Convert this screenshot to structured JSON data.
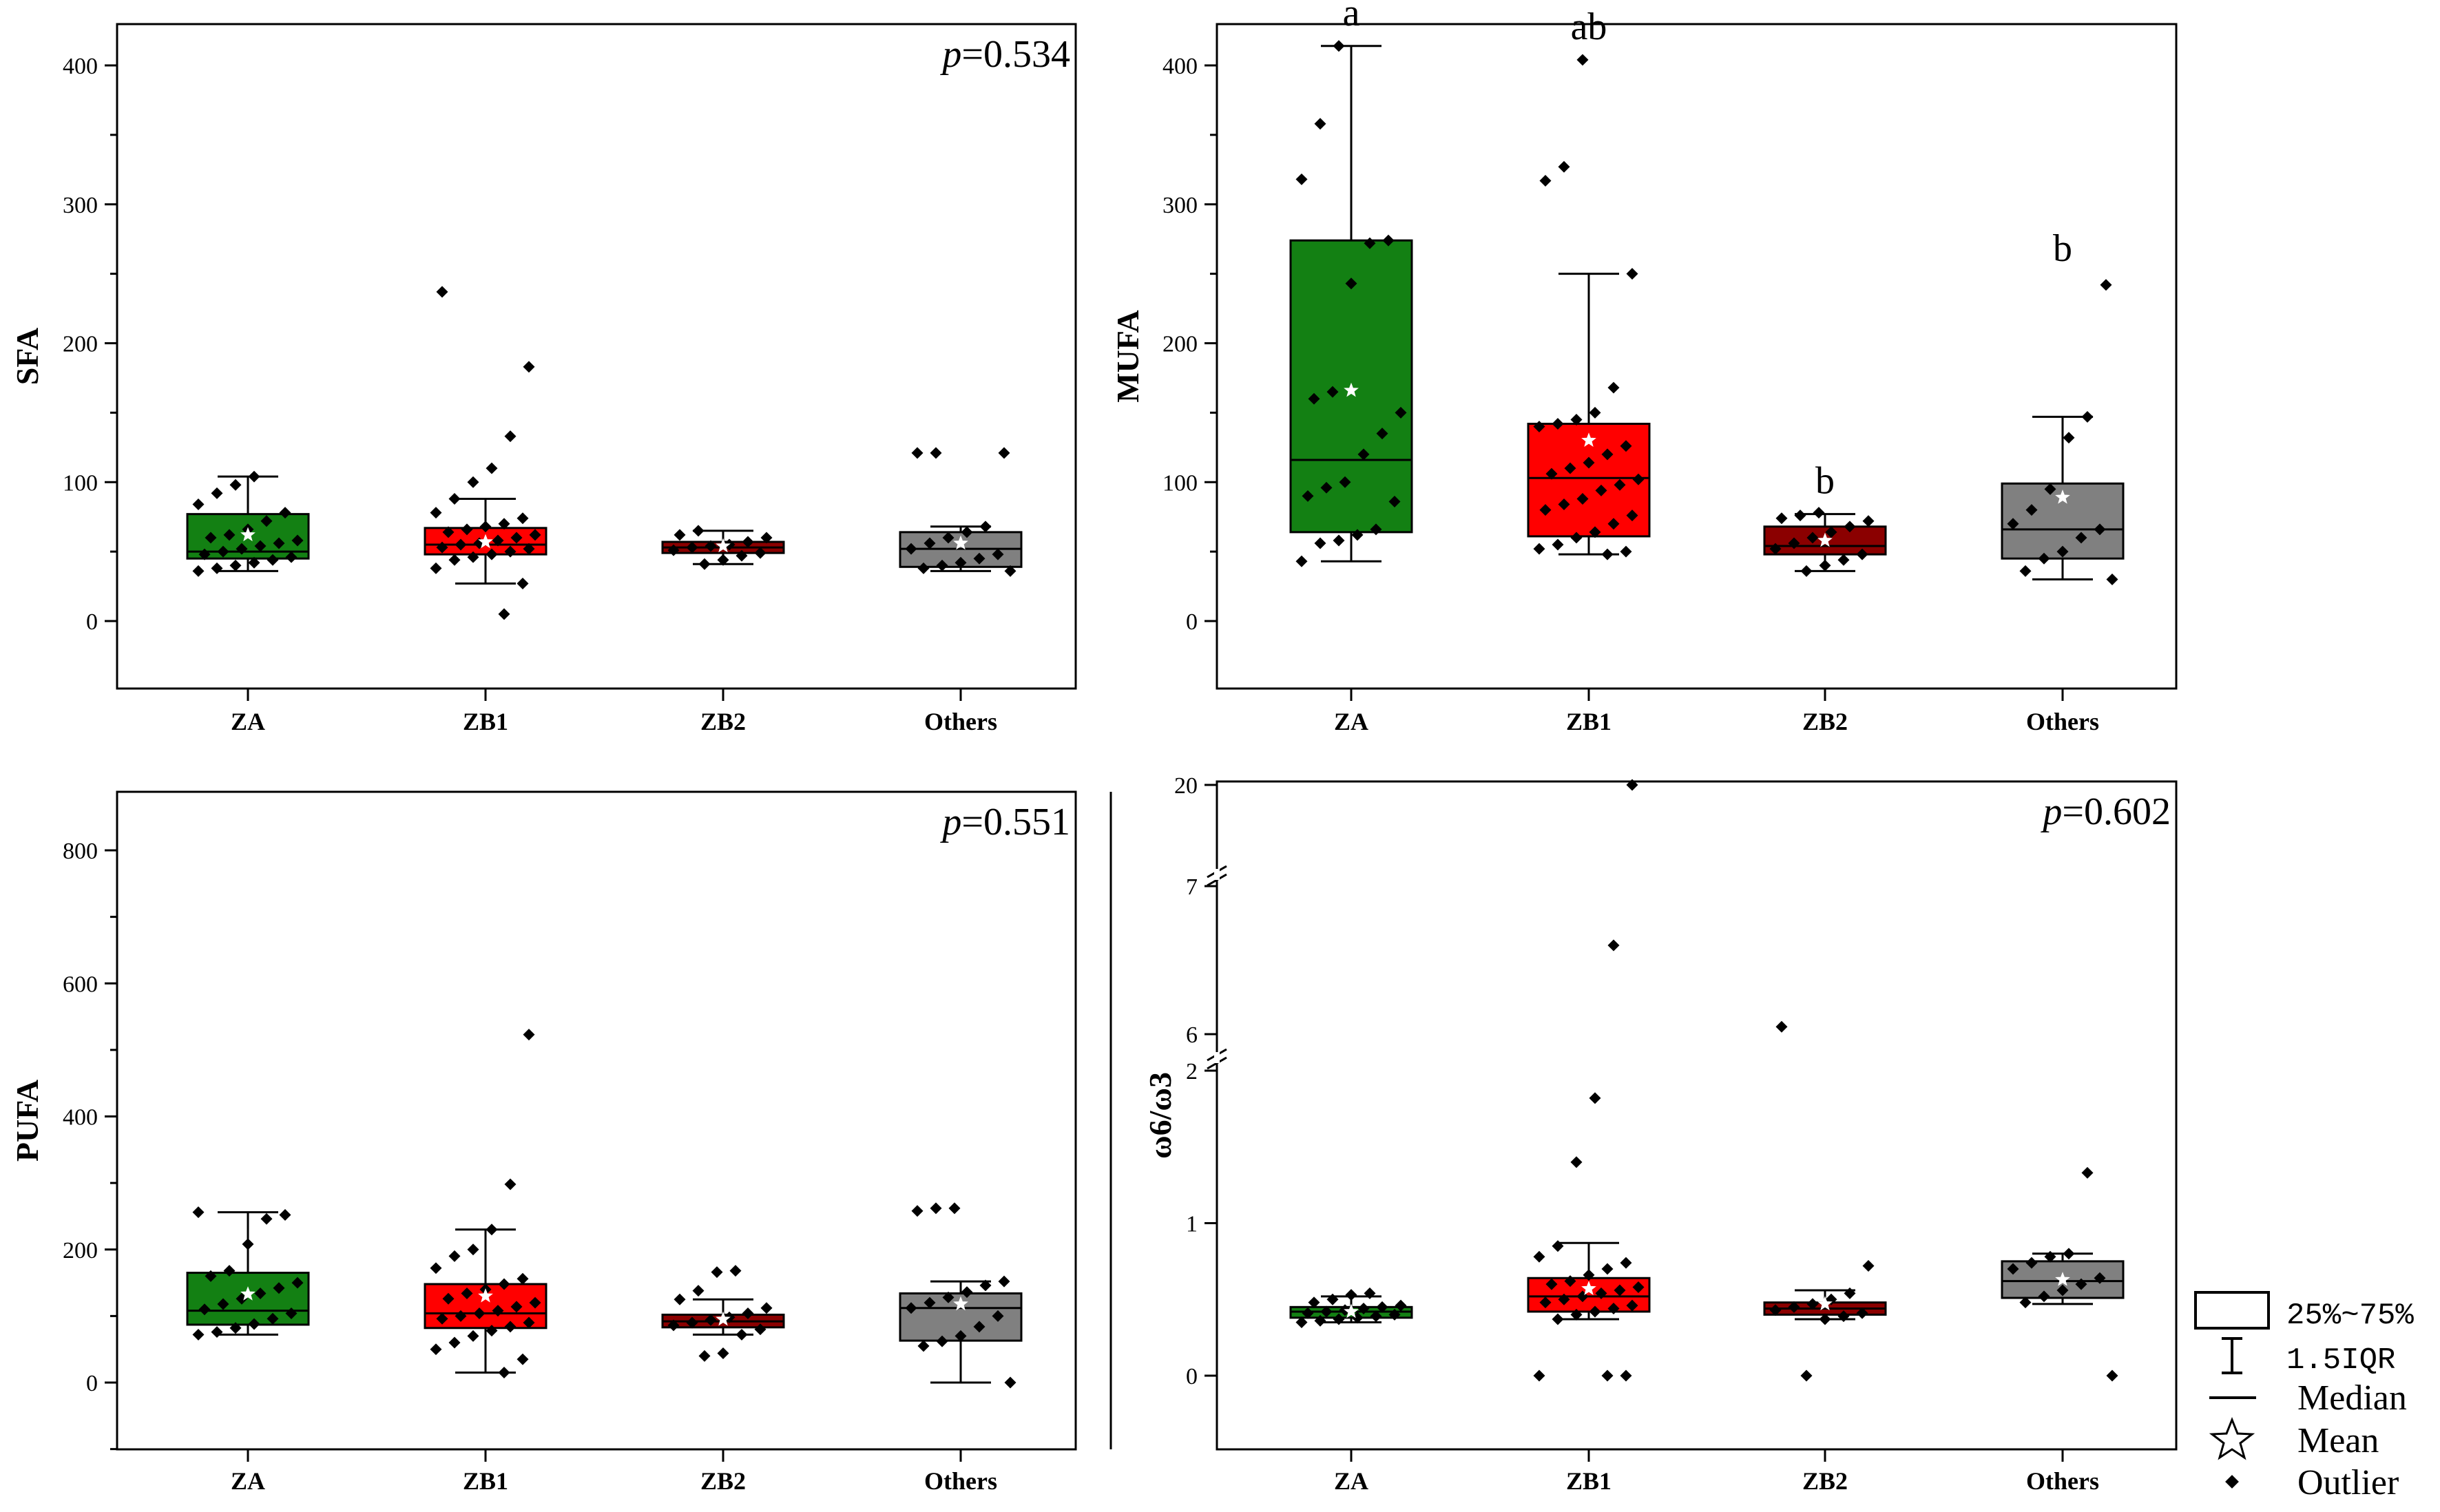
{
  "categories": [
    "ZA",
    "ZB1",
    "ZB2",
    "Others"
  ],
  "colors": {
    "ZA": "#138013",
    "ZB1": "#ff0000",
    "ZB2": "#8b0000",
    "Others": "#808080"
  },
  "legend": {
    "box": "25%~75%",
    "whisker": "1.5IQR",
    "median": "Median",
    "mean": "Mean",
    "outlier": "Outlier"
  },
  "chart_data": [
    {
      "type": "box",
      "ylabel": "SFA",
      "p_prefix": "p",
      "p_value": "=0.534",
      "ylim": [
        -50,
        450
      ],
      "yticks": [
        0,
        100,
        200,
        300,
        400
      ],
      "boxes": [
        {
          "category": "ZA",
          "q1": 45,
          "q3": 77,
          "median": 50,
          "mean": 62,
          "whisker_low": 36,
          "whisker_high": 104,
          "points": [
            36,
            38,
            40,
            42,
            44,
            46,
            48,
            50,
            52,
            54,
            56,
            58,
            60,
            62,
            66,
            72,
            78,
            84,
            92,
            98,
            104
          ]
        },
        {
          "category": "ZB1",
          "q1": 48,
          "q3": 67,
          "median": 55,
          "mean": 57,
          "whisker_low": 27,
          "whisker_high": 88,
          "points": [
            5,
            27,
            38,
            44,
            46,
            48,
            50,
            52,
            53,
            55,
            56,
            58,
            60,
            62,
            64,
            66,
            68,
            70,
            74,
            78,
            88,
            100,
            110,
            133,
            183,
            237
          ]
        },
        {
          "category": "ZB2",
          "q1": 49,
          "q3": 57,
          "median": 53,
          "mean": 54,
          "whisker_low": 41,
          "whisker_high": 65,
          "points": [
            41,
            44,
            47,
            49,
            51,
            53,
            54,
            55,
            57,
            60,
            62,
            65
          ]
        },
        {
          "category": "Others",
          "q1": 39,
          "q3": 64,
          "median": 52,
          "mean": 56,
          "whisker_low": 36,
          "whisker_high": 68,
          "points": [
            36,
            38,
            40,
            42,
            45,
            48,
            52,
            56,
            60,
            64,
            68,
            121,
            121,
            121
          ]
        }
      ]
    },
    {
      "type": "box",
      "ylabel": "MUFA",
      "ylim": [
        -50,
        450
      ],
      "yticks": [
        0,
        100,
        200,
        300,
        400
      ],
      "boxes": [
        {
          "category": "ZA",
          "q1": 64,
          "q3": 274,
          "median": 116,
          "mean": 166,
          "whisker_low": 43,
          "whisker_high": 414,
          "letter": "a",
          "points": [
            43,
            56,
            58,
            62,
            66,
            86,
            90,
            96,
            100,
            120,
            135,
            150,
            160,
            165,
            243,
            272,
            274,
            318,
            358,
            414
          ]
        },
        {
          "category": "ZB1",
          "q1": 61,
          "q3": 142,
          "median": 103,
          "mean": 130,
          "whisker_low": 48,
          "whisker_high": 250,
          "letter": "ab",
          "points": [
            48,
            50,
            52,
            55,
            60,
            64,
            70,
            76,
            80,
            84,
            88,
            94,
            98,
            102,
            106,
            110,
            114,
            120,
            126,
            140,
            142,
            145,
            150,
            168,
            250,
            317,
            327,
            404
          ]
        },
        {
          "category": "ZB2",
          "q1": 48,
          "q3": 68,
          "median": 54,
          "mean": 58,
          "whisker_low": 36,
          "whisker_high": 77,
          "letter": "b",
          "points": [
            36,
            40,
            44,
            48,
            52,
            56,
            60,
            64,
            68,
            72,
            74,
            76,
            78
          ]
        },
        {
          "category": "Others",
          "q1": 45,
          "q3": 99,
          "median": 66,
          "mean": 89,
          "whisker_low": 30,
          "whisker_high": 147,
          "letter": "b",
          "points": [
            30,
            36,
            45,
            50,
            60,
            66,
            70,
            80,
            95,
            132,
            147,
            242
          ]
        }
      ]
    },
    {
      "type": "box",
      "ylabel": "PUFA",
      "p_prefix": "p",
      "p_value": "=0.551",
      "ylim": [
        -100,
        900
      ],
      "yticks": [
        0,
        200,
        400,
        600,
        800
      ],
      "boxes": [
        {
          "category": "ZA",
          "q1": 87,
          "q3": 165,
          "median": 108,
          "mean": 133,
          "whisker_low": 72,
          "whisker_high": 256,
          "points": [
            72,
            76,
            82,
            88,
            96,
            104,
            110,
            118,
            126,
            134,
            142,
            150,
            160,
            168,
            208,
            246,
            252,
            256
          ]
        },
        {
          "category": "ZB1",
          "q1": 82,
          "q3": 148,
          "median": 104,
          "mean": 130,
          "whisker_low": 15,
          "whisker_high": 230,
          "points": [
            15,
            35,
            50,
            60,
            70,
            78,
            84,
            90,
            96,
            100,
            104,
            108,
            114,
            120,
            126,
            134,
            140,
            148,
            156,
            172,
            190,
            200,
            230,
            298,
            523
          ]
        },
        {
          "category": "ZB2",
          "q1": 83,
          "q3": 102,
          "median": 92,
          "mean": 95,
          "whisker_low": 72,
          "whisker_high": 125,
          "points": [
            40,
            44,
            72,
            80,
            86,
            90,
            94,
            98,
            104,
            112,
            125,
            138,
            166,
            168
          ]
        },
        {
          "category": "Others",
          "q1": 63,
          "q3": 134,
          "median": 112,
          "mean": 118,
          "whisker_low": 0,
          "whisker_high": 152,
          "points": [
            0,
            55,
            62,
            70,
            84,
            100,
            112,
            120,
            128,
            136,
            146,
            152,
            258,
            262,
            262
          ]
        }
      ]
    },
    {
      "type": "box",
      "ylabel": "ω6/ω3",
      "p_prefix": "p",
      "p_value": "=0.602",
      "broken_axis": true,
      "yticks": [
        0,
        1,
        2,
        6,
        7,
        20
      ],
      "boxes": [
        {
          "category": "ZA",
          "q1": 0.38,
          "q3": 0.45,
          "median": 0.42,
          "mean": 0.42,
          "whisker_low": 0.35,
          "whisker_high": 0.52,
          "points": [
            0.35,
            0.36,
            0.37,
            0.38,
            0.39,
            0.4,
            0.41,
            0.42,
            0.43,
            0.44,
            0.45,
            0.46,
            0.48,
            0.5,
            0.53,
            0.54
          ]
        },
        {
          "category": "ZB1",
          "q1": 0.42,
          "q3": 0.64,
          "median": 0.52,
          "mean": 0.57,
          "whisker_low": 0.37,
          "whisker_high": 0.87,
          "points": [
            0,
            0,
            0,
            0.37,
            0.4,
            0.42,
            0.44,
            0.46,
            0.48,
            0.5,
            0.52,
            0.54,
            0.56,
            0.58,
            0.6,
            0.62,
            0.66,
            0.7,
            0.74,
            0.78,
            0.85,
            1.4,
            1.82,
            6.6,
            19.5
          ]
        },
        {
          "category": "ZB2",
          "q1": 0.4,
          "q3": 0.48,
          "median": 0.44,
          "mean": 0.47,
          "whisker_low": 0.37,
          "whisker_high": 0.56,
          "points": [
            0,
            0.37,
            0.39,
            0.41,
            0.43,
            0.45,
            0.47,
            0.5,
            0.54,
            0.72,
            6.05
          ]
        },
        {
          "category": "Others",
          "q1": 0.51,
          "q3": 0.75,
          "median": 0.62,
          "mean": 0.63,
          "whisker_low": 0.47,
          "whisker_high": 0.8,
          "points": [
            0,
            0.48,
            0.52,
            0.56,
            0.6,
            0.64,
            0.7,
            0.74,
            0.78,
            0.8,
            1.33
          ]
        }
      ]
    }
  ]
}
